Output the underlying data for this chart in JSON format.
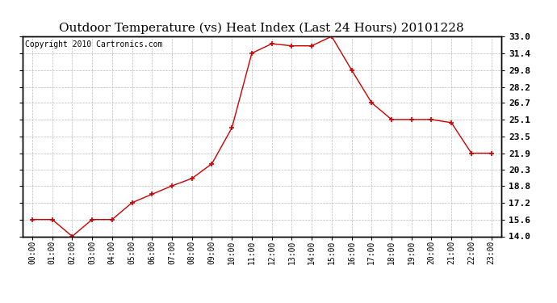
{
  "title": "Outdoor Temperature (vs) Heat Index (Last 24 Hours) 20101228",
  "copyright": "Copyright 2010 Cartronics.com",
  "x_labels": [
    "00:00",
    "01:00",
    "02:00",
    "03:00",
    "04:00",
    "05:00",
    "06:00",
    "07:00",
    "08:00",
    "09:00",
    "10:00",
    "11:00",
    "12:00",
    "13:00",
    "14:00",
    "15:00",
    "16:00",
    "17:00",
    "18:00",
    "19:00",
    "20:00",
    "21:00",
    "22:00",
    "23:00"
  ],
  "y_values": [
    15.6,
    15.6,
    14.0,
    15.6,
    15.6,
    17.2,
    18.0,
    18.8,
    19.5,
    20.9,
    24.3,
    31.4,
    32.3,
    32.1,
    32.1,
    33.0,
    29.8,
    26.7,
    25.1,
    25.1,
    25.1,
    24.8,
    21.9,
    21.9
  ],
  "line_color": "#cc0000",
  "marker": "+",
  "marker_size": 5,
  "marker_color": "#cc0000",
  "background_color": "#ffffff",
  "grid_color": "#bbbbbb",
  "ylim": [
    14.0,
    33.0
  ],
  "yticks": [
    14.0,
    15.6,
    17.2,
    18.8,
    20.3,
    21.9,
    23.5,
    25.1,
    26.7,
    28.2,
    29.8,
    31.4,
    33.0
  ],
  "title_fontsize": 11,
  "copyright_fontsize": 7
}
